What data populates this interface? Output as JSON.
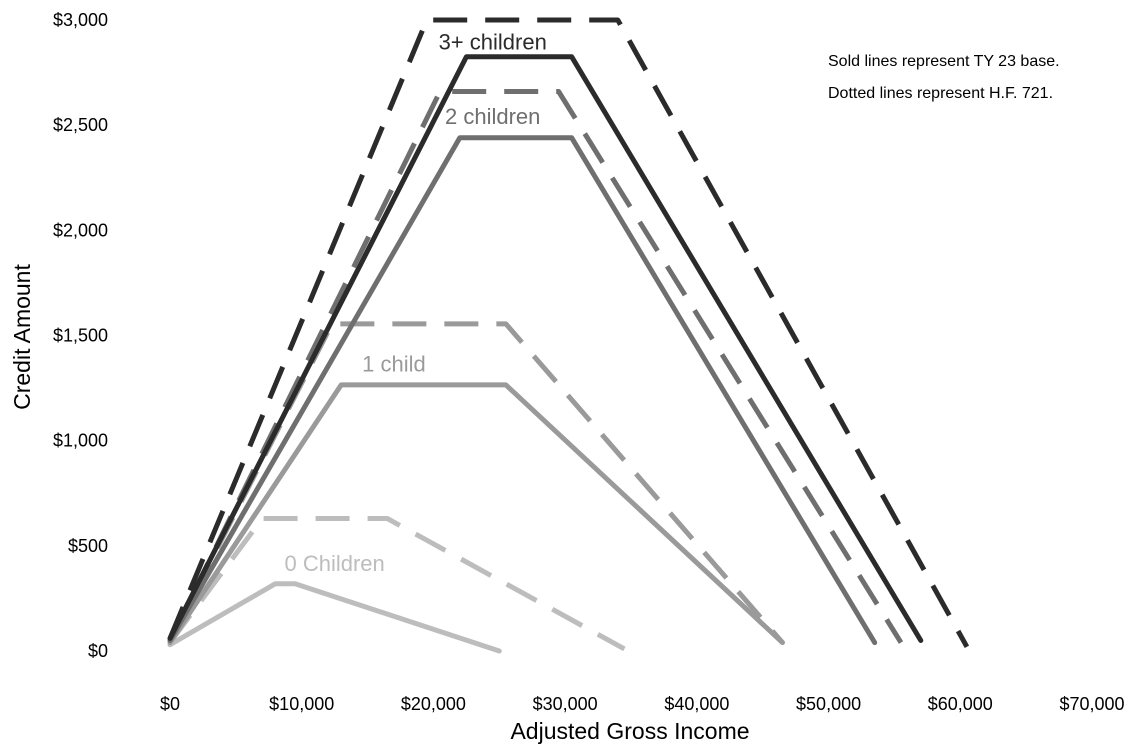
{
  "chart_data": {
    "type": "line",
    "xlabel": "Adjusted Gross Income",
    "ylabel": "Credit Amount",
    "xlim": [
      0,
      70000
    ],
    "ylim": [
      0,
      3000
    ],
    "x_ticks": [
      {
        "value": 0,
        "label": "$0"
      },
      {
        "value": 10000,
        "label": "$10,000"
      },
      {
        "value": 20000,
        "label": "$20,000"
      },
      {
        "value": 30000,
        "label": "$30,000"
      },
      {
        "value": 40000,
        "label": "$40,000"
      },
      {
        "value": 50000,
        "label": "$50,000"
      },
      {
        "value": 60000,
        "label": "$60,000"
      },
      {
        "value": 70000,
        "label": "$70,000"
      }
    ],
    "y_ticks": [
      {
        "value": 0,
        "label": "$0"
      },
      {
        "value": 500,
        "label": "$500"
      },
      {
        "value": 1000,
        "label": "$1,000"
      },
      {
        "value": 1500,
        "label": "$1,500"
      },
      {
        "value": 2000,
        "label": "$2,000"
      },
      {
        "value": 2500,
        "label": "$2,500"
      },
      {
        "value": 3000,
        "label": "$3,000"
      }
    ],
    "grid": false,
    "annotations": [
      "Sold lines represent TY 23 base.",
      "Dotted lines represent H.F. 721."
    ],
    "series": [
      {
        "group": "0 Children",
        "style": "solid",
        "color": "#bdbdbd",
        "x": [
          0,
          8000,
          9500,
          25000
        ],
        "y": [
          30,
          320,
          320,
          0
        ]
      },
      {
        "group": "0 Children",
        "style": "dashed",
        "color": "#bdbdbd",
        "x": [
          0,
          7000,
          16500,
          34500
        ],
        "y": [
          40,
          630,
          630,
          10
        ]
      },
      {
        "group": "1 child",
        "style": "solid",
        "color": "#9a9a9a",
        "x": [
          0,
          13000,
          25500,
          46500
        ],
        "y": [
          40,
          1265,
          1265,
          40
        ]
      },
      {
        "group": "1 child",
        "style": "dashed",
        "color": "#9a9a9a",
        "x": [
          0,
          12300,
          25500,
          46500
        ],
        "y": [
          50,
          1555,
          1555,
          40
        ]
      },
      {
        "group": "2 children",
        "style": "solid",
        "color": "#6f6f6f",
        "x": [
          0,
          22000,
          30500,
          53500
        ],
        "y": [
          50,
          2440,
          2440,
          40
        ]
      },
      {
        "group": "2 children",
        "style": "dashed",
        "color": "#6f6f6f",
        "x": [
          0,
          20500,
          29500,
          55500
        ],
        "y": [
          50,
          2660,
          2660,
          40
        ]
      },
      {
        "group": "3+ children",
        "style": "solid",
        "color": "#2b2b2b",
        "x": [
          0,
          22500,
          30500,
          57000
        ],
        "y": [
          60,
          2825,
          2825,
          50
        ]
      },
      {
        "group": "3+ children",
        "style": "dashed",
        "color": "#2b2b2b",
        "x": [
          0,
          19500,
          34000,
          60500
        ],
        "y": [
          60,
          3000,
          3000,
          20
        ]
      }
    ],
    "series_labels": [
      {
        "text": "3+ children",
        "x": 24500,
        "y": 2860,
        "color": "#2b2b2b"
      },
      {
        "text": "2 children",
        "x": 24500,
        "y": 2505,
        "color": "#6f6f6f"
      },
      {
        "text": "1 child",
        "x": 17000,
        "y": 1330,
        "color": "#9a9a9a"
      },
      {
        "text": "0 Children",
        "x": 12500,
        "y": 380,
        "color": "#bdbdbd"
      }
    ]
  }
}
